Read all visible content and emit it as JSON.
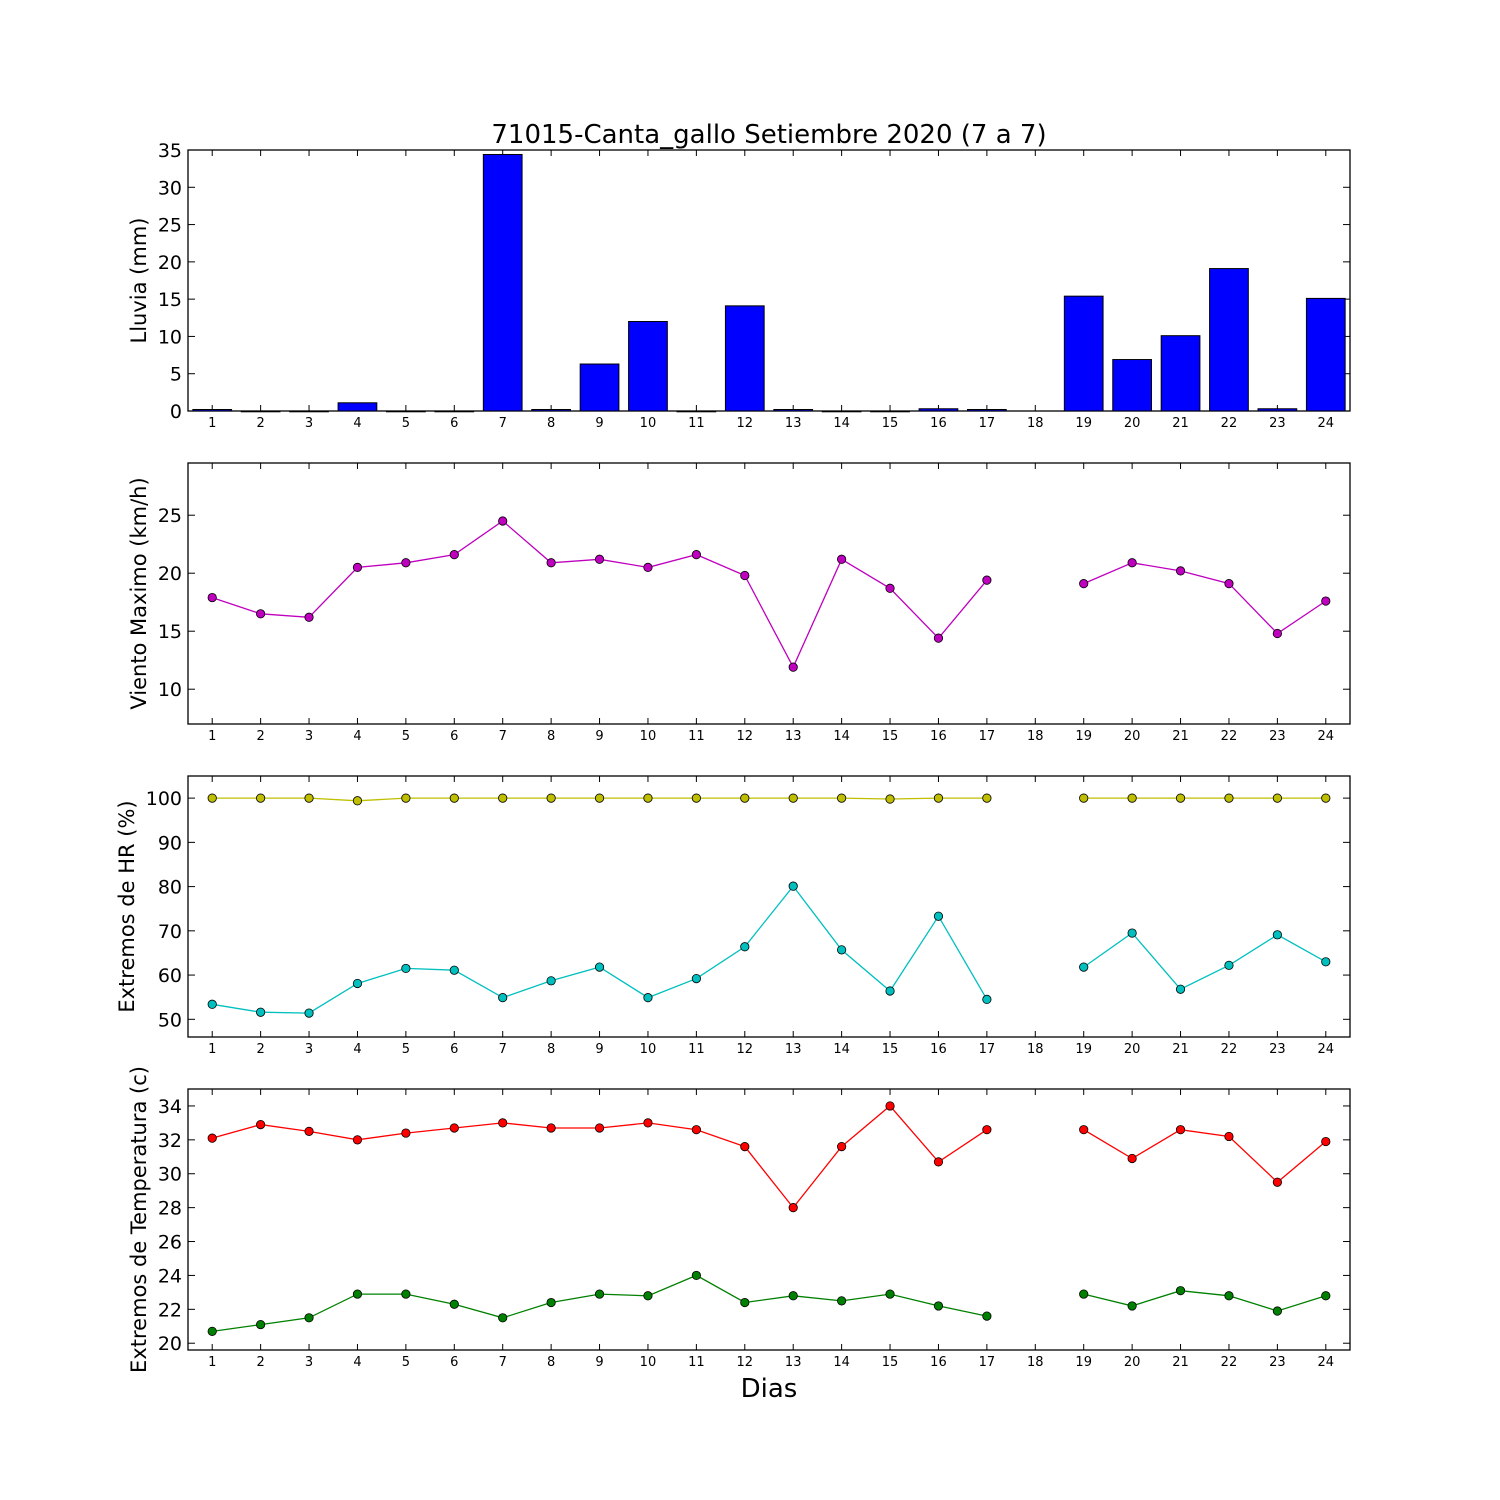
{
  "figure": {
    "title": "71015-Canta_gallo Setiembre 2020  (7 a 7)",
    "xlabel": "Dias"
  },
  "chart_data": [
    {
      "type": "bar",
      "ylabel": "Lluvia (mm)",
      "xlabel": "",
      "categories": [
        "1",
        "2",
        "3",
        "4",
        "5",
        "6",
        "7",
        "8",
        "9",
        "10",
        "11",
        "12",
        "13",
        "14",
        "15",
        "16",
        "17",
        "18",
        "19",
        "20",
        "21",
        "22",
        "23",
        "24"
      ],
      "ylim": [
        0,
        35
      ],
      "yticks": [
        0,
        5,
        10,
        15,
        20,
        25,
        30,
        35
      ],
      "grid": false,
      "series": [
        {
          "color": "#0000ff",
          "values": [
            0.2,
            0,
            0,
            1.1,
            0,
            0,
            34.4,
            0.2,
            6.3,
            12.0,
            0,
            14.1,
            0.2,
            0,
            0,
            0.3,
            0.2,
            null,
            15.4,
            6.9,
            10.1,
            19.1,
            0.3,
            15.1
          ]
        }
      ]
    },
    {
      "type": "line",
      "ylabel": "Viento Maximo (km/h)",
      "xlabel": "",
      "categories": [
        "1",
        "2",
        "3",
        "4",
        "5",
        "6",
        "7",
        "8",
        "9",
        "10",
        "11",
        "12",
        "13",
        "14",
        "15",
        "16",
        "17",
        "18",
        "19",
        "20",
        "21",
        "22",
        "23",
        "24"
      ],
      "ylim": [
        7,
        29.5
      ],
      "yticks": [
        10,
        15,
        20,
        25
      ],
      "grid": false,
      "series": [
        {
          "color": "#bf00bf",
          "values": [
            17.9,
            16.5,
            16.2,
            20.5,
            20.9,
            21.6,
            24.5,
            20.9,
            21.2,
            20.5,
            21.6,
            19.8,
            11.9,
            21.2,
            18.7,
            14.4,
            19.4,
            null,
            19.1,
            20.9,
            20.2,
            19.1,
            14.8,
            17.6
          ]
        }
      ]
    },
    {
      "type": "line",
      "ylabel": "Extremos de HR (%)",
      "xlabel": "",
      "categories": [
        "1",
        "2",
        "3",
        "4",
        "5",
        "6",
        "7",
        "8",
        "9",
        "10",
        "11",
        "12",
        "13",
        "14",
        "15",
        "16",
        "17",
        "18",
        "19",
        "20",
        "21",
        "22",
        "23",
        "24"
      ],
      "ylim": [
        46,
        105
      ],
      "yticks": [
        50,
        60,
        70,
        80,
        90,
        100
      ],
      "grid": false,
      "series": [
        {
          "color": "#bfbf00",
          "values": [
            100,
            100,
            100,
            99.4,
            100,
            100,
            100,
            100,
            100,
            100,
            100,
            100,
            100,
            100,
            99.8,
            100,
            100,
            null,
            100,
            100,
            100,
            100,
            100,
            100
          ]
        },
        {
          "color": "#00bfbf",
          "values": [
            53.4,
            51.6,
            51.4,
            58.1,
            61.5,
            61.1,
            54.9,
            58.7,
            61.8,
            54.9,
            59.2,
            66.4,
            80.1,
            65.7,
            56.4,
            73.3,
            54.5,
            null,
            61.8,
            69.5,
            56.8,
            62.2,
            69.1,
            63.0
          ]
        }
      ]
    },
    {
      "type": "line",
      "ylabel": "Extremos de Temperatura (c)",
      "xlabel": "Dias",
      "categories": [
        "1",
        "2",
        "3",
        "4",
        "5",
        "6",
        "7",
        "8",
        "9",
        "10",
        "11",
        "12",
        "13",
        "14",
        "15",
        "16",
        "17",
        "18",
        "19",
        "20",
        "21",
        "22",
        "23",
        "24"
      ],
      "ylim": [
        19.6,
        35.0
      ],
      "yticks": [
        20,
        22,
        24,
        26,
        28,
        30,
        32,
        34
      ],
      "grid": false,
      "series": [
        {
          "color": "#ff0000",
          "values": [
            32.1,
            32.9,
            32.5,
            32.0,
            32.4,
            32.7,
            33.0,
            32.7,
            32.7,
            33.0,
            32.6,
            31.6,
            28.0,
            31.6,
            34.0,
            30.7,
            32.6,
            null,
            32.6,
            30.9,
            32.6,
            32.2,
            29.5,
            31.9
          ]
        },
        {
          "color": "#008000",
          "values": [
            20.7,
            21.1,
            21.5,
            22.9,
            22.9,
            22.3,
            21.5,
            22.4,
            22.9,
            22.8,
            24.0,
            22.4,
            22.8,
            22.5,
            22.9,
            22.2,
            21.6,
            null,
            22.9,
            22.2,
            23.1,
            22.8,
            21.9,
            22.8
          ]
        }
      ]
    }
  ]
}
